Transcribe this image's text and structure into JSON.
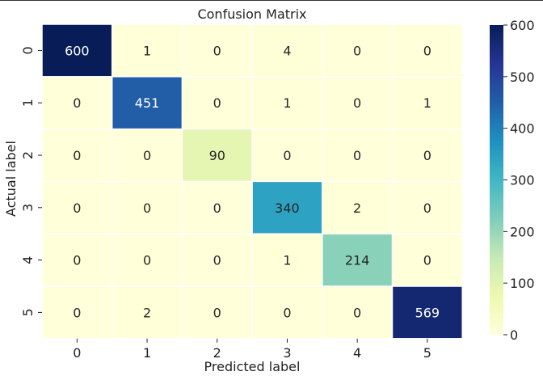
{
  "chart_data": {
    "type": "heatmap",
    "title": "Confusion Matrix",
    "xlabel": "Predicted label",
    "ylabel": "Actual label",
    "x_categories": [
      "0",
      "1",
      "2",
      "3",
      "4",
      "5"
    ],
    "y_categories": [
      "0",
      "1",
      "2",
      "3",
      "4",
      "5"
    ],
    "values": [
      [
        600,
        1,
        0,
        4,
        0,
        0
      ],
      [
        0,
        451,
        0,
        1,
        0,
        1
      ],
      [
        0,
        0,
        90,
        0,
        0,
        0
      ],
      [
        0,
        0,
        0,
        340,
        2,
        0
      ],
      [
        0,
        0,
        0,
        1,
        214,
        0
      ],
      [
        0,
        2,
        0,
        0,
        0,
        569
      ]
    ],
    "colormap": "YlGnBu",
    "vmin": 0,
    "vmax": 600,
    "colorbar_ticks": [
      0,
      100,
      200,
      300,
      400,
      500,
      600
    ]
  }
}
